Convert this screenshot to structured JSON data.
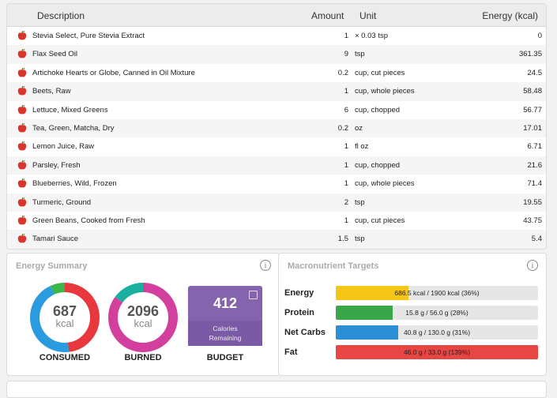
{
  "table": {
    "headers": {
      "description": "Description",
      "amount": "Amount",
      "unit": "Unit",
      "energy": "Energy (kcal)"
    },
    "rows": [
      {
        "description": "Stevia Select, Pure Stevia Extract",
        "amount": "1",
        "unit": "× 0.03 tsp",
        "energy": "0"
      },
      {
        "description": "Flax Seed Oil",
        "amount": "9",
        "unit": "tsp",
        "energy": "361.35"
      },
      {
        "description": "Artichoke Hearts or Globe, Canned in Oil Mixture",
        "amount": "0.2",
        "unit": "cup, cut pieces",
        "energy": "24.5"
      },
      {
        "description": "Beets, Raw",
        "amount": "1",
        "unit": "cup, whole pieces",
        "energy": "58.48"
      },
      {
        "description": "Lettuce, Mixed Greens",
        "amount": "6",
        "unit": "cup, chopped",
        "energy": "56.77"
      },
      {
        "description": "Tea, Green, Matcha, Dry",
        "amount": "0.2",
        "unit": "oz",
        "energy": "17.01"
      },
      {
        "description": "Lemon Juice, Raw",
        "amount": "1",
        "unit": "fl oz",
        "energy": "6.71"
      },
      {
        "description": "Parsley, Fresh",
        "amount": "1",
        "unit": "cup, chopped",
        "energy": "21.6"
      },
      {
        "description": "Blueberries, Wild, Frozen",
        "amount": "1",
        "unit": "cup, whole pieces",
        "energy": "71.4"
      },
      {
        "description": "Turmeric, Ground",
        "amount": "2",
        "unit": "tsp",
        "energy": "19.55"
      },
      {
        "description": "Green Beans, Cooked from Fresh",
        "amount": "1",
        "unit": "cup, cut pieces",
        "energy": "43.75"
      },
      {
        "description": "Tamari Sauce",
        "amount": "1.5",
        "unit": "tsp",
        "energy": "5.4"
      }
    ],
    "row_icon": "apple-icon"
  },
  "energy_summary": {
    "title": "Energy Summary",
    "info_icon": "info-icon",
    "consumed": {
      "value": "687",
      "unit": "kcal",
      "label": "CONSUMED",
      "segments": [
        {
          "color": "#e8383d",
          "fraction": 0.48
        },
        {
          "color": "#2b9be0",
          "fraction": 0.45
        },
        {
          "color": "#3cb54a",
          "fraction": 0.07
        }
      ]
    },
    "burned": {
      "value": "2096",
      "unit": "kcal",
      "label": "BURNED",
      "segments": [
        {
          "color": "#d33f9c",
          "fraction": 0.85
        },
        {
          "color": "#1ab0a0",
          "fraction": 0.15
        }
      ]
    },
    "budget": {
      "value": "412",
      "line1": "Calories",
      "line2": "Remaining",
      "label": "BUDGET",
      "color": "#8465ad",
      "icon": "calculator-icon"
    }
  },
  "macros": {
    "title": "Macronutrient Targets",
    "info_icon": "info-icon",
    "items": [
      {
        "name": "Energy",
        "text": "686.5 kcal / 1900 kcal (36%)",
        "fraction": 0.36,
        "color": "#f5c518"
      },
      {
        "name": "Protein",
        "text": "15.8 g / 56.0 g (28%)",
        "fraction": 0.28,
        "color": "#3aa64a"
      },
      {
        "name": "Net Carbs",
        "text": "40.8 g / 130.0 g (31%)",
        "fraction": 0.31,
        "color": "#2b8fd6"
      },
      {
        "name": "Fat",
        "text": "46.0 g / 33.0 g (139%)",
        "fraction": 1.0,
        "color": "#e84545"
      }
    ]
  }
}
